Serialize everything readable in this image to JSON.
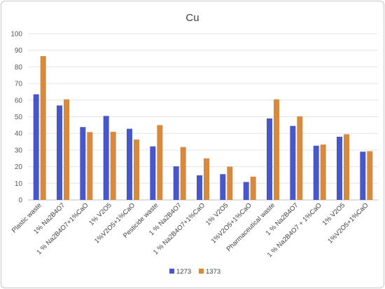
{
  "chart_data": {
    "type": "bar",
    "title": "Cu",
    "xlabel": "",
    "ylabel": "",
    "ylim": [
      0,
      100
    ],
    "yticks": [
      0,
      10,
      20,
      30,
      40,
      50,
      60,
      70,
      80,
      90,
      100
    ],
    "grid": true,
    "legend_position": "bottom",
    "categories": [
      "Plastic waste",
      "1% Na2B4O7",
      "1 % Na2B4O7+1%CaO",
      "1% V2O5",
      "1%V2O5+1%CaO",
      "Pesticide waste",
      "1 % Na2B4O7",
      "1 % Na2B4O7+1%CaO",
      "1% V2O5",
      "1%V2O5+1%CaO",
      "Pharmaceutical waste",
      "1 % Na2B4O7",
      "1 % Na2B4O7 + 1%CaO",
      "1% V2O5",
      "1%V2O5+1%CaO"
    ],
    "series": [
      {
        "name": "1273",
        "color": "#4756c9",
        "values": [
          63.5,
          56.8,
          43.8,
          50.5,
          42.8,
          32.2,
          20.2,
          14.8,
          15.5,
          10.8,
          49.0,
          44.5,
          32.6,
          38.0,
          29.0
        ]
      },
      {
        "name": "1373",
        "color": "#d78a3d",
        "values": [
          86.5,
          60.5,
          40.8,
          41.0,
          36.3,
          45.0,
          31.8,
          25.0,
          20.0,
          14.0,
          60.5,
          50.3,
          33.3,
          39.5,
          29.3
        ]
      }
    ]
  }
}
